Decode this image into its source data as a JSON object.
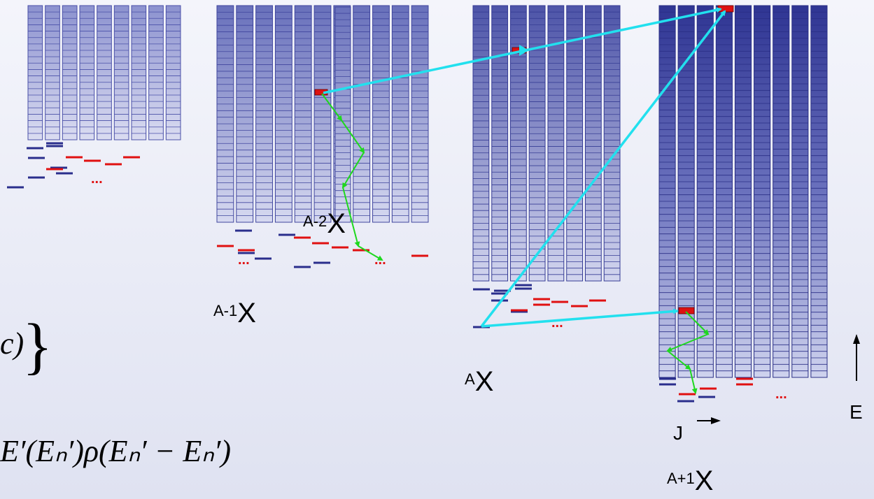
{
  "nuclei": [
    {
      "prefix": "A-2",
      "symbol": "X"
    },
    {
      "prefix": "A-1",
      "symbol": "X"
    },
    {
      "prefix": "A",
      "symbol": "X"
    },
    {
      "prefix": "A+1",
      "symbol": "X"
    }
  ],
  "axes": {
    "energy_label": "E",
    "spin_label": "J"
  },
  "ellipsis": "...",
  "formula": {
    "fragment_top": "c)",
    "fragment_bottom": "E′(Eₙ′)ρ(Eₙ′ − Eₙ′)"
  },
  "colors": {
    "arrow_cyan": "#22e0ee",
    "cascade_green": "#1ed81e",
    "discrete_blue": "#2a2e8c",
    "discrete_red": "#e01010",
    "bin_red": "#dd1111"
  }
}
